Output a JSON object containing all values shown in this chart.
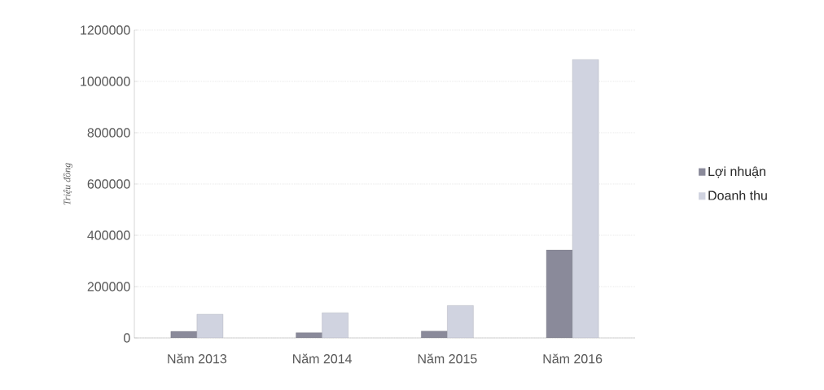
{
  "chart_data": {
    "type": "bar",
    "ylabel": "Triệu đồng",
    "categories": [
      "Năm 2013",
      "Năm 2014",
      "Năm 2015",
      "Năm 2016"
    ],
    "series": [
      {
        "name": "Lợi nhuận",
        "color": "#8a8a9a",
        "values": [
          25000,
          20000,
          26000,
          343000
        ]
      },
      {
        "name": "Doanh thu",
        "color": "#d0d3e0",
        "values": [
          92000,
          98000,
          126000,
          1085000
        ]
      }
    ],
    "ylim": [
      0,
      1200000
    ],
    "yticks": [
      0,
      200000,
      400000,
      600000,
      800000,
      1000000,
      1200000
    ],
    "grid": "y",
    "legend": "right"
  }
}
